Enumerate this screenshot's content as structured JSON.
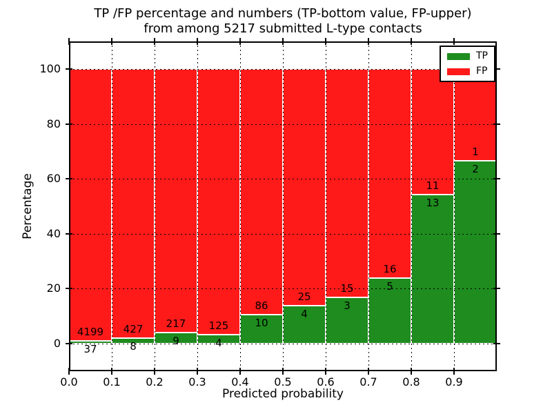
{
  "title": {
    "line1": "TP /FP percentage and numbers (TP-bottom value, FP-upper)",
    "line2": "from among 5217 submitted L-type contacts"
  },
  "chart_data": {
    "type": "bar",
    "stacked": true,
    "normalized": "percent-of-bin",
    "title": "TP /FP percentage and numbers (TP-bottom value, FP-upper) from among 5217 submitted L-type contacts",
    "xlabel": "Predicted probability",
    "ylabel": "Percentage",
    "total_contacts": 5217,
    "bin_width": 0.1,
    "categories": [
      "0.0-0.1",
      "0.1-0.2",
      "0.2-0.3",
      "0.3-0.4",
      "0.4-0.5",
      "0.5-0.6",
      "0.6-0.7",
      "0.7-0.8",
      "0.8-0.9",
      "0.9-1.0"
    ],
    "x_tick_labels": [
      "0.0",
      "0.1",
      "0.2",
      "0.3",
      "0.4",
      "0.5",
      "0.6",
      "0.7",
      "0.8",
      "0.9"
    ],
    "y_tick_values": [
      0,
      20,
      40,
      60,
      80,
      100
    ],
    "y_tick_labels": [
      "0",
      "20",
      "40",
      "60",
      "80",
      "100"
    ],
    "xlim": [
      0.0,
      1.0
    ],
    "ylim": [
      -10,
      110
    ],
    "grid": true,
    "bar_edge_color": "#ffffff",
    "series": [
      {
        "name": "TP",
        "color": "#1e8c1e",
        "counts": [
          37,
          8,
          9,
          4,
          10,
          4,
          3,
          5,
          13,
          2
        ]
      },
      {
        "name": "FP",
        "color": "#ff1a1a",
        "counts": [
          4199,
          427,
          217,
          125,
          86,
          25,
          15,
          16,
          11,
          1
        ]
      }
    ],
    "tp_percent_by_bin": [
      0.87,
      1.84,
      3.98,
      3.1,
      10.42,
      13.79,
      16.67,
      23.81,
      54.17,
      66.67
    ],
    "legend": {
      "position": "upper right",
      "entries": [
        {
          "label": "TP",
          "color": "#1e8c1e"
        },
        {
          "label": "FP",
          "color": "#ff1a1a"
        }
      ]
    }
  }
}
